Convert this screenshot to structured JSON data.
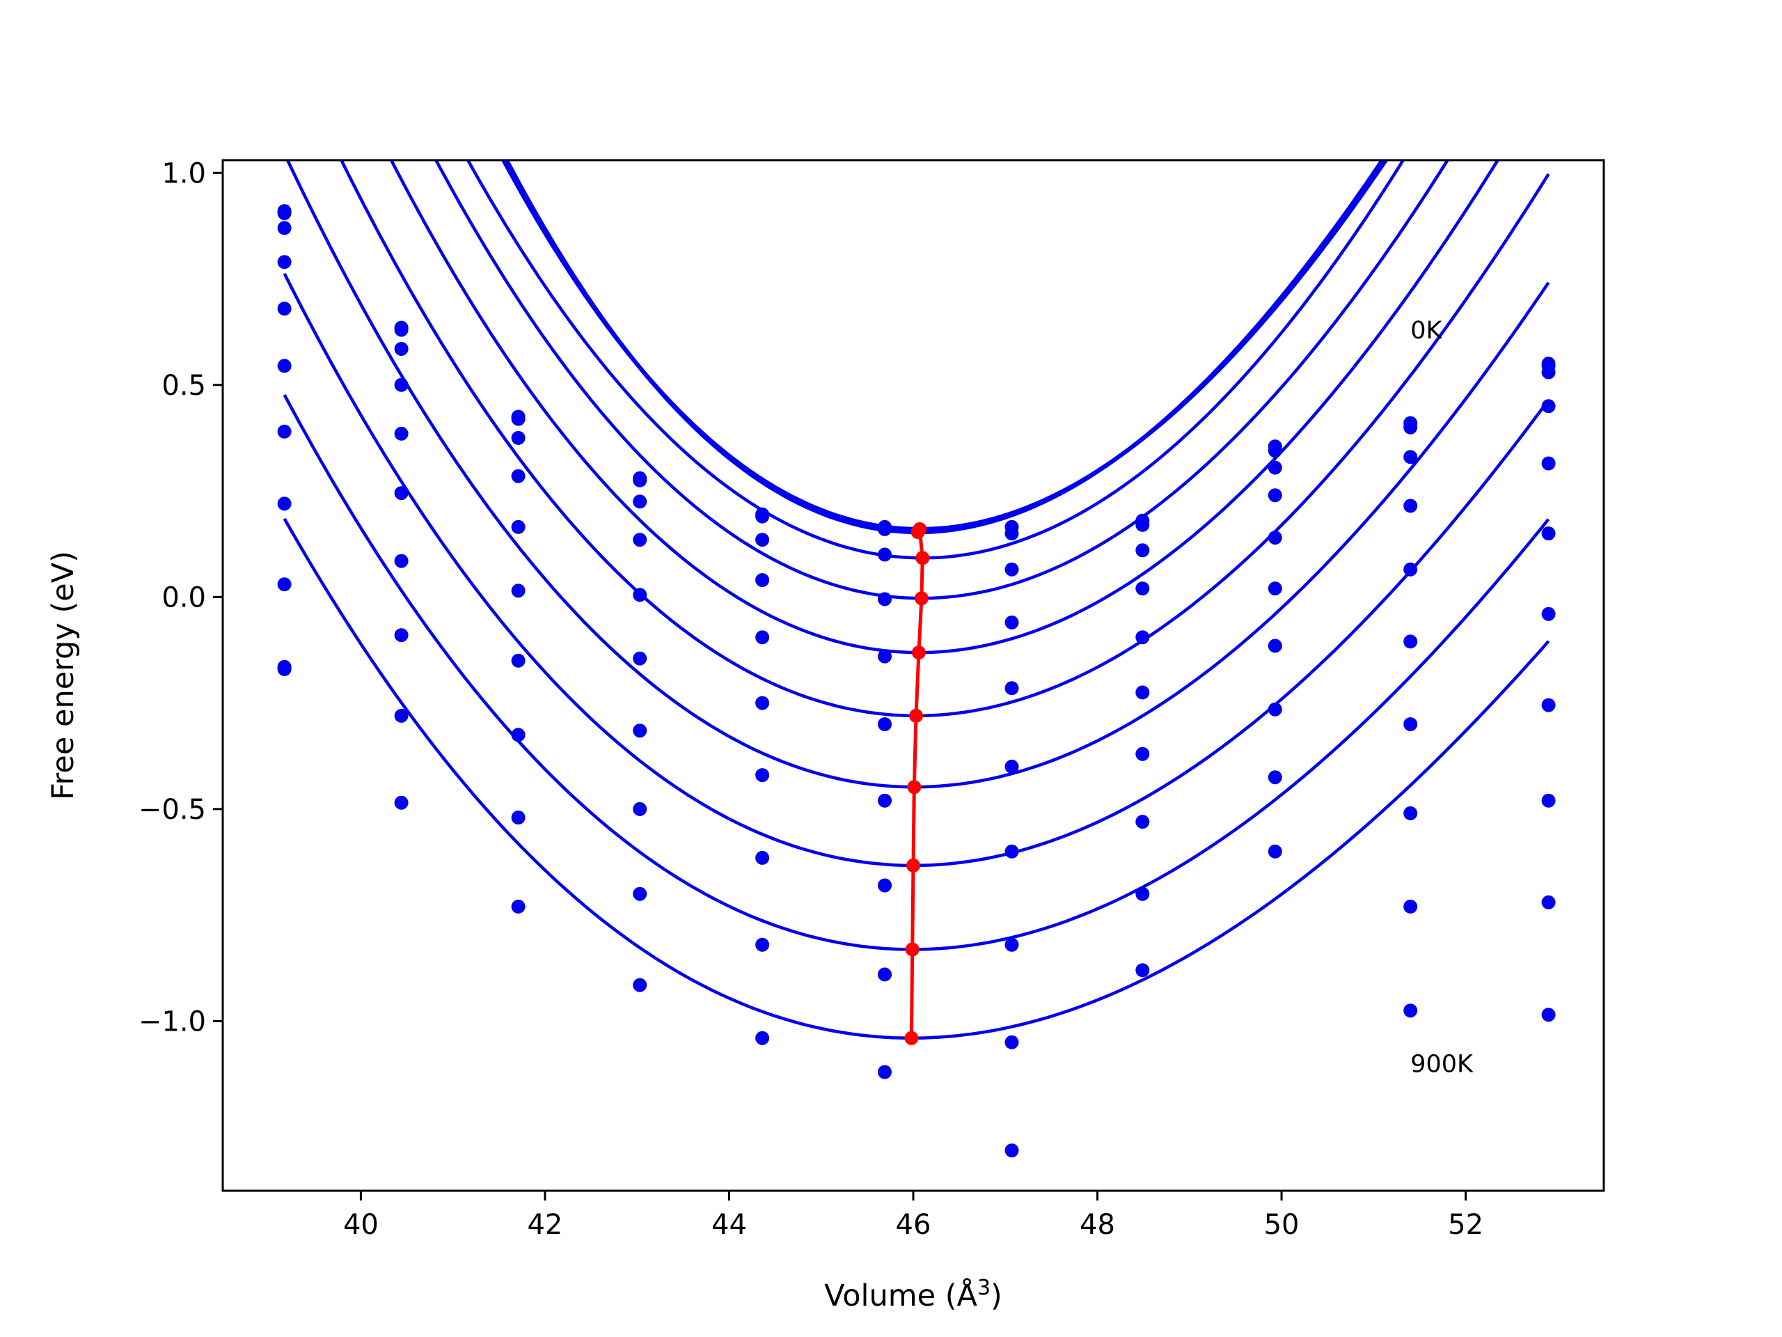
{
  "chart_data": {
    "type": "scatter",
    "title": "",
    "xlabel": "Volume (Å",
    "xlabel_sup": "3",
    "xlabel_close": ")",
    "ylabel": "Free energy (eV)",
    "xlim": [
      38.5,
      53.5
    ],
    "ylim": [
      -1.4,
      1.03
    ],
    "xticks": [
      40,
      42,
      44,
      46,
      48,
      50,
      52
    ],
    "xtick_labels": [
      "40",
      "42",
      "44",
      "46",
      "48",
      "50",
      "52"
    ],
    "yticks": [
      1.0,
      0.5,
      0.0,
      -0.5,
      -1.0
    ],
    "ytick_labels": [
      "1.0",
      "0.5",
      "0.0",
      "−0.5",
      "−1.0"
    ],
    "grid": false,
    "annotations": [
      {
        "text": "0K",
        "x": 51.4,
        "y": 0.61
      },
      {
        "text": "900K",
        "x": 51.4,
        "y": -1.12
      }
    ],
    "volumes": [
      39.17,
      40.44,
      41.71,
      43.03,
      44.36,
      45.69,
      47.07,
      48.49,
      49.93,
      51.4,
      52.9
    ],
    "colors": {
      "series": "#0000ee",
      "minima": "#ff0000"
    },
    "fit_range": [
      39.17,
      52.9
    ],
    "series": [
      {
        "points": [
          0.91,
          0.635,
          0.425,
          0.28,
          0.195,
          0.165,
          0.165,
          0.18,
          0.355,
          0.41,
          0.55
        ],
        "fit": {
          "vmin": 46.05,
          "fmin": 0.153,
          "a": 0.0395,
          "b": -0.001
        }
      },
      {
        "points": [
          0.905,
          0.63,
          0.42,
          0.275,
          0.19,
          0.16,
          0.15,
          0.17,
          0.345,
          0.4,
          0.545
        ],
        "fit": {
          "vmin": 46.07,
          "fmin": 0.16,
          "a": 0.0385,
          "b": -0.0009
        }
      },
      {
        "points": [
          0.87,
          0.585,
          0.375,
          0.225,
          0.135,
          0.1,
          0.065,
          0.11,
          0.305,
          0.33,
          0.53
        ],
        "fit": {
          "vmin": 46.1,
          "fmin": 0.092,
          "a": 0.0365,
          "b": -0.0004
        }
      },
      {
        "points": [
          0.79,
          0.5,
          0.285,
          0.135,
          0.04,
          -0.005,
          -0.06,
          0.02,
          0.24,
          0.215,
          0.45
        ],
        "fit": {
          "vmin": 46.09,
          "fmin": -0.003,
          "a": 0.0345,
          "b": -0.0005
        }
      },
      {
        "points": [
          0.68,
          0.385,
          0.165,
          0.005,
          -0.095,
          -0.14,
          -0.215,
          -0.095,
          0.14,
          0.065,
          0.315
        ],
        "fit": {
          "vmin": 46.06,
          "fmin": -0.131,
          "a": 0.0325,
          "b": -0.0005
        }
      },
      {
        "points": [
          0.545,
          0.245,
          0.015,
          -0.145,
          -0.25,
          -0.3,
          -0.4,
          -0.225,
          0.02,
          -0.105,
          0.15
        ],
        "fit": {
          "vmin": 46.03,
          "fmin": -0.28,
          "a": 0.0305,
          "b": -0.0005
        }
      },
      {
        "points": [
          0.39,
          0.085,
          -0.15,
          -0.315,
          -0.42,
          -0.48,
          -0.6,
          -0.37,
          -0.115,
          -0.3,
          -0.04
        ],
        "fit": {
          "vmin": 46.01,
          "fmin": -0.448,
          "a": 0.0285,
          "b": -0.0005
        }
      },
      {
        "points": [
          0.22,
          -0.09,
          -0.325,
          -0.5,
          -0.615,
          -0.68,
          -0.82,
          -0.53,
          -0.265,
          -0.51,
          -0.255
        ],
        "fit": {
          "vmin": 46.0,
          "fmin": -0.633,
          "a": 0.0265,
          "b": -0.0005
        }
      },
      {
        "points": [
          0.03,
          -0.28,
          -0.52,
          -0.7,
          -0.82,
          -0.89,
          -1.05,
          -0.7,
          -0.425,
          -0.73,
          -0.48
        ],
        "fit": {
          "vmin": 45.99,
          "fmin": -0.831,
          "a": 0.0247,
          "b": -0.0005
        }
      },
      {
        "points": [
          -0.165,
          -0.485,
          -0.73,
          -0.915,
          -1.04,
          -1.12,
          -1.305,
          -0.88,
          -0.6,
          -0.975,
          -0.72
        ],
        "fit": {
          "vmin": 45.98,
          "fmin": -1.04,
          "a": 0.023,
          "b": -0.0005
        }
      },
      {
        "points": [
          -0.17,
          null,
          null,
          null,
          null,
          null,
          null,
          null,
          null,
          null,
          -0.985
        ],
        "fit": null
      }
    ],
    "minima": {
      "x": [
        46.05,
        46.07,
        46.1,
        46.09,
        46.06,
        46.03,
        46.01,
        46.0,
        45.99,
        45.98
      ],
      "y": [
        0.153,
        0.16,
        0.092,
        -0.003,
        -0.131,
        -0.28,
        -0.448,
        -0.633,
        -0.831,
        -1.04
      ]
    }
  }
}
